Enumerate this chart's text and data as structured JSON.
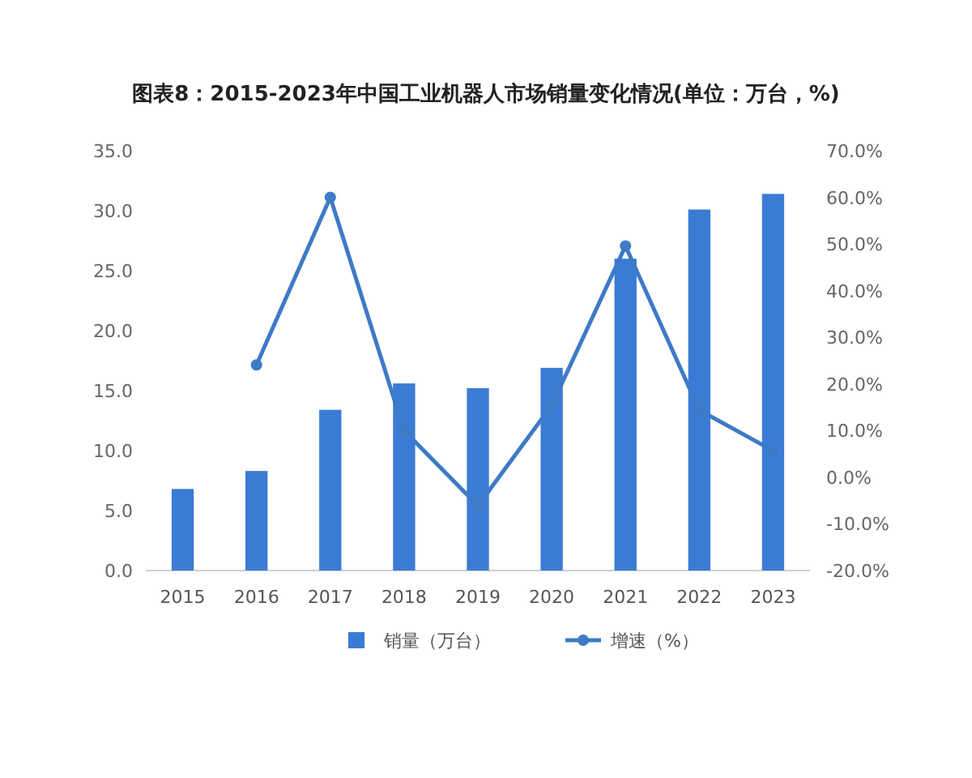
{
  "chart_data": {
    "type": "bar",
    "title": "图表8：2015-2023年中国工业机器人市场销量变化情况(单位：万台，%)",
    "categories": [
      "2015",
      "2016",
      "2017",
      "2018",
      "2019",
      "2020",
      "2021",
      "2022",
      "2023"
    ],
    "series": [
      {
        "name": "销量（万台）",
        "color": "#3a7bd5",
        "values": [
          6.8,
          8.3,
          13.4,
          15.6,
          15.2,
          16.9,
          26.0,
          30.1,
          31.4
        ]
      },
      {
        "name": "增速（%）",
        "type": "line",
        "axis": "y2",
        "color": "#3f7ac6",
        "marker": "circle",
        "values": [
          null,
          24.1,
          60.0,
          10.0,
          -6.1,
          15.4,
          49.6,
          14.4,
          5.7
        ]
      }
    ],
    "ylim": [
      0,
      35
    ],
    "yticks": [
      {
        "value": 0,
        "label": "0.0"
      },
      {
        "value": 5,
        "label": "5.0"
      },
      {
        "value": 10,
        "label": "10.0"
      },
      {
        "value": 15,
        "label": "15.0"
      },
      {
        "value": 20,
        "label": "20.0"
      },
      {
        "value": 25,
        "label": "25.0"
      },
      {
        "value": 30,
        "label": "30.0"
      },
      {
        "value": 35,
        "label": "35.0"
      }
    ],
    "y2lim": [
      -20,
      70
    ],
    "y2ticks": [
      {
        "value": -20,
        "label": "-20.0%"
      },
      {
        "value": -10,
        "label": "-10.0%"
      },
      {
        "value": 0,
        "label": "0.0%"
      },
      {
        "value": 10,
        "label": "10.0%"
      },
      {
        "value": 20,
        "label": "20.0%"
      },
      {
        "value": 30,
        "label": "30.0%"
      },
      {
        "value": 40,
        "label": "40.0%"
      },
      {
        "value": 50,
        "label": "50.0%"
      },
      {
        "value": 60,
        "label": "60.0%"
      },
      {
        "value": 70,
        "label": "70.0%"
      }
    ],
    "legend": "bottom",
    "grid": false
  }
}
